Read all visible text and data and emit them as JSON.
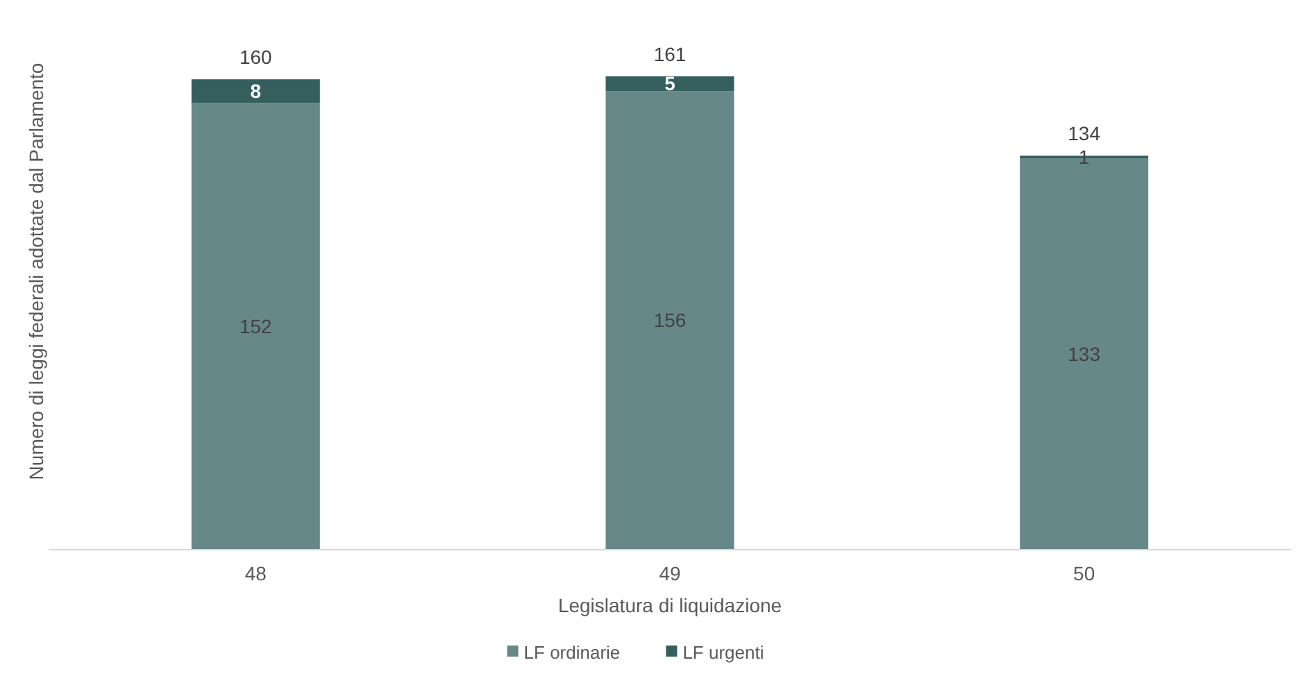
{
  "chart_data": {
    "type": "bar",
    "xlabel": "Legislatura di liquidazione",
    "ylabel": "Numero di leggi federali adottate dal Parlamento",
    "categories": [
      "48",
      "49",
      "50"
    ],
    "stacked": true,
    "data_labels": true,
    "legend": "bottom",
    "totals": [
      "160",
      "161",
      "134"
    ],
    "series": [
      {
        "name": "LF ordinarie",
        "color": "#678889",
        "values": [
          152,
          156,
          133
        ]
      },
      {
        "name": "LF urgenti",
        "color": "#355e5f",
        "values": [
          8,
          5,
          1
        ]
      }
    ]
  }
}
